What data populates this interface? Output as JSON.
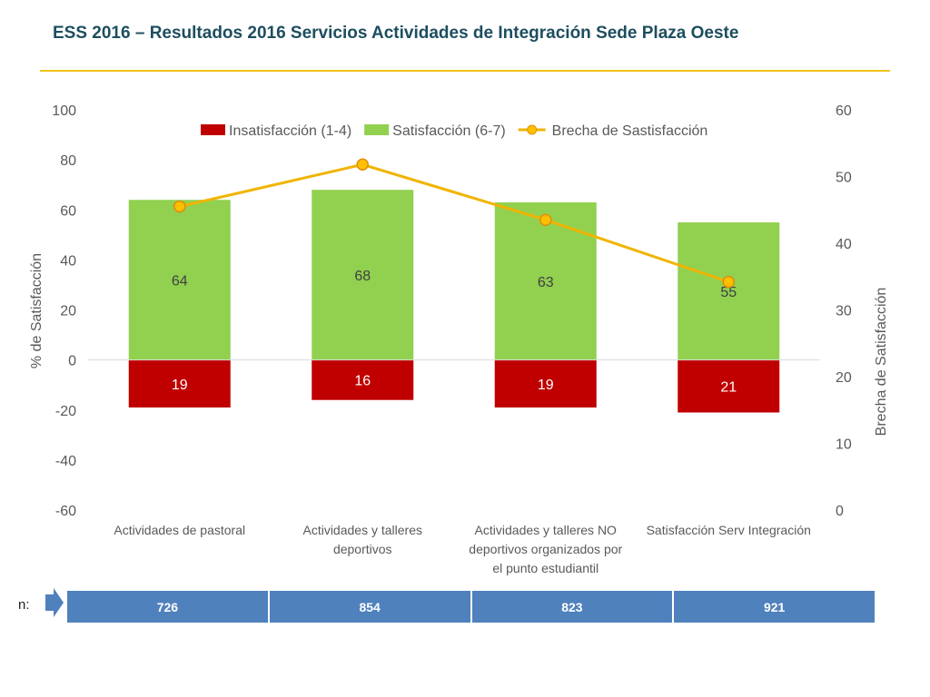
{
  "title": "ESS 2016 – Resultados 2016 Servicios Actividades de Integración Sede Plaza Oeste",
  "chart_data": {
    "type": "bar",
    "categories": [
      [
        "Actividades de pastoral"
      ],
      [
        "Actividades y talleres",
        "deportivos"
      ],
      [
        "Actividades y talleres NO",
        "deportivos organizados por",
        "el punto estudiantil"
      ],
      [
        "Satisfacción Serv Integración"
      ]
    ],
    "series": [
      {
        "name": "Insatisfacción (1-4)",
        "kind": "bar-negative",
        "values": [
          19,
          16,
          19,
          21
        ],
        "color": "#c00000",
        "labels": [
          "19",
          "16",
          "19",
          "21"
        ]
      },
      {
        "name": "Satisfacción (6-7)",
        "kind": "bar",
        "values": [
          64,
          68,
          63,
          55
        ],
        "color": "#92d050",
        "labels": [
          "64",
          "68",
          "63",
          "55"
        ]
      },
      {
        "name": "Brecha de Sastisfacción",
        "kind": "line",
        "axis": "right",
        "values": [
          45.5,
          51.8,
          43.5,
          34.2
        ],
        "color": "#f0b400",
        "marker_fill": "#ffc000"
      }
    ],
    "ylabel": "% de Satisfacción",
    "y2label": "Brecha de Satisfacción",
    "ylim": [
      -60,
      100
    ],
    "y2lim": [
      0,
      60
    ],
    "yticks": [
      "-60",
      "-40",
      "-20",
      "0",
      "20",
      "40",
      "60",
      "80",
      "100"
    ],
    "y2ticks": [
      "0",
      "10",
      "20",
      "30",
      "40",
      "50",
      "60"
    ],
    "legend_position": "top-center",
    "grid": false
  },
  "n_row": {
    "label": "n:",
    "values": [
      "726",
      "854",
      "823",
      "921"
    ]
  }
}
